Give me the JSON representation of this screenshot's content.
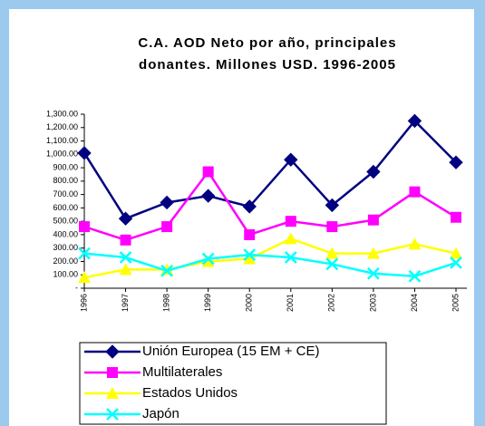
{
  "chart_data": {
    "type": "line",
    "title_lines": [
      "C.A. AOD Neto por año, principales",
      "donantes. Millones USD. 1996-2005"
    ],
    "categories": [
      "1996",
      "1997",
      "1998",
      "1999",
      "2000",
      "2001",
      "2002",
      "2003",
      "2004",
      "2005"
    ],
    "series": [
      {
        "name": "Unión Europea (15 EM + CE)",
        "color": "#000080",
        "marker": "diamond",
        "values": [
          1010,
          520,
          640,
          690,
          610,
          960,
          620,
          870,
          1250,
          940
        ]
      },
      {
        "name": "Multilaterales",
        "color": "#ff00ff",
        "marker": "square",
        "values": [
          460,
          360,
          460,
          870,
          400,
          500,
          460,
          510,
          720,
          530
        ]
      },
      {
        "name": "Estados Unidos",
        "color": "#ffff00",
        "marker": "triangle",
        "values": [
          80,
          140,
          140,
          200,
          220,
          370,
          260,
          260,
          330,
          260
        ]
      },
      {
        "name": "Japón",
        "color": "#00ffff",
        "marker": "x",
        "values": [
          260,
          230,
          130,
          220,
          250,
          230,
          180,
          110,
          90,
          190
        ]
      }
    ],
    "ylim": [
      0,
      1300
    ],
    "yticks": [
      {
        "value": 0,
        "label": "-"
      },
      {
        "value": 100,
        "label": "100.00"
      },
      {
        "value": 200,
        "label": "200.00"
      },
      {
        "value": 300,
        "label": "300.00"
      },
      {
        "value": 400,
        "label": "400.00"
      },
      {
        "value": 500,
        "label": "500.00"
      },
      {
        "value": 600,
        "label": "600.00"
      },
      {
        "value": 700,
        "label": "700.00"
      },
      {
        "value": 800,
        "label": "800.00"
      },
      {
        "value": 900,
        "label": "900.00"
      },
      {
        "value": 1000,
        "label": "1,000.00"
      },
      {
        "value": 1100,
        "label": "1,100.00"
      },
      {
        "value": 1200,
        "label": "1,200.00"
      },
      {
        "value": 1300,
        "label": "1,300.00"
      }
    ],
    "grid": false,
    "legend": "bottom"
  }
}
